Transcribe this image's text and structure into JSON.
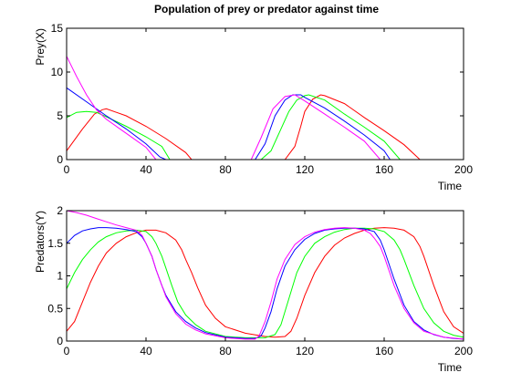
{
  "chart_data": [
    {
      "type": "line",
      "title": "Population of prey or predator against time",
      "xlabel": "Time",
      "ylabel": "Prey(X)",
      "xlim": [
        0,
        200
      ],
      "ylim": [
        0,
        15
      ],
      "xticks": [
        "0",
        "40",
        "80",
        "120",
        "160",
        "200"
      ],
      "yticks": [
        "0",
        "5",
        "10",
        "15"
      ],
      "grid": false,
      "series": [
        {
          "color": "#ff0000",
          "x": [
            0,
            8,
            14,
            18,
            20,
            30,
            40,
            50,
            60,
            63,
            70,
            80,
            90,
            100,
            110,
            115,
            118,
            120,
            124,
            128,
            130,
            140,
            150,
            160,
            170,
            178,
            185,
            200
          ],
          "y": [
            1.0,
            3.5,
            5.2,
            5.7,
            5.8,
            5.0,
            3.8,
            2.4,
            0.8,
            0,
            0,
            0,
            0,
            0,
            0,
            1.5,
            3.8,
            5.5,
            6.9,
            7.4,
            7.3,
            6.4,
            4.8,
            3.3,
            1.7,
            0,
            0,
            0
          ]
        },
        {
          "color": "#00ff00",
          "x": [
            0,
            5,
            10,
            15,
            20,
            30,
            40,
            48,
            52,
            60,
            80,
            98,
            103,
            108,
            112,
            116,
            120,
            122,
            130,
            140,
            150,
            160,
            168,
            200
          ],
          "y": [
            4.8,
            5.4,
            5.5,
            5.4,
            4.9,
            3.8,
            2.6,
            1.5,
            0,
            0,
            0,
            0,
            1.0,
            3.5,
            5.5,
            6.8,
            7.3,
            7.4,
            6.8,
            5.2,
            3.7,
            2.1,
            0,
            0
          ]
        },
        {
          "color": "#0000ff",
          "x": [
            0,
            10,
            20,
            30,
            40,
            47,
            50,
            80,
            95,
            100,
            105,
            110,
            114,
            118,
            120,
            130,
            140,
            150,
            160,
            163,
            200
          ],
          "y": [
            8.2,
            6.6,
            5.0,
            3.5,
            1.8,
            0.3,
            0,
            0,
            0,
            1.8,
            5.0,
            6.8,
            7.4,
            7.4,
            7.1,
            5.9,
            4.4,
            2.8,
            1.0,
            0,
            0
          ]
        },
        {
          "color": "#ff00ff",
          "x": [
            0,
            5,
            10,
            15,
            20,
            30,
            40,
            45,
            80,
            93,
            98,
            104,
            110,
            115,
            120,
            130,
            140,
            150,
            158,
            200
          ],
          "y": [
            11.8,
            9.5,
            7.4,
            5.7,
            4.6,
            3.0,
            1.4,
            0,
            0,
            0,
            2.5,
            5.8,
            7.2,
            7.4,
            6.7,
            5.2,
            3.7,
            2.1,
            0,
            0
          ]
        }
      ]
    },
    {
      "type": "line",
      "title": "",
      "xlabel": "Time",
      "ylabel": "Predators(Y)",
      "xlim": [
        0,
        200
      ],
      "ylim": [
        0,
        2
      ],
      "xticks": [
        "0",
        "40",
        "80",
        "120",
        "160",
        "200"
      ],
      "yticks": [
        "0",
        "0.5",
        "1",
        "1.5",
        "2"
      ],
      "grid": false,
      "series": [
        {
          "color": "#ff0000",
          "x": [
            0,
            4,
            8,
            12,
            16,
            20,
            25,
            30,
            35,
            40,
            45,
            50,
            55,
            58,
            60,
            63,
            66,
            70,
            75,
            80,
            90,
            100,
            105,
            110,
            113,
            116,
            120,
            125,
            130,
            135,
            140,
            145,
            150,
            155,
            160,
            165,
            170,
            175,
            178,
            180,
            185,
            190,
            195,
            200
          ],
          "y": [
            0.15,
            0.3,
            0.6,
            0.9,
            1.15,
            1.35,
            1.5,
            1.6,
            1.66,
            1.7,
            1.7,
            1.66,
            1.55,
            1.4,
            1.25,
            1.05,
            0.82,
            0.55,
            0.35,
            0.22,
            0.12,
            0.07,
            0.06,
            0.07,
            0.15,
            0.35,
            0.7,
            1.05,
            1.3,
            1.47,
            1.58,
            1.65,
            1.7,
            1.73,
            1.74,
            1.73,
            1.7,
            1.6,
            1.45,
            1.3,
            0.85,
            0.45,
            0.22,
            0.12
          ]
        },
        {
          "color": "#00ff00",
          "x": [
            0,
            4,
            8,
            12,
            16,
            20,
            25,
            30,
            35,
            40,
            43,
            45,
            48,
            50,
            53,
            56,
            60,
            65,
            70,
            80,
            90,
            100,
            105,
            108,
            112,
            116,
            120,
            125,
            130,
            135,
            140,
            145,
            150,
            155,
            160,
            165,
            168,
            170,
            175,
            180,
            185,
            190,
            195,
            200
          ],
          "y": [
            0.8,
            1.05,
            1.25,
            1.4,
            1.52,
            1.6,
            1.66,
            1.69,
            1.7,
            1.68,
            1.6,
            1.5,
            1.3,
            1.12,
            0.85,
            0.6,
            0.4,
            0.25,
            0.15,
            0.07,
            0.05,
            0.05,
            0.1,
            0.25,
            0.65,
            1.05,
            1.3,
            1.5,
            1.6,
            1.67,
            1.71,
            1.73,
            1.73,
            1.72,
            1.68,
            1.55,
            1.4,
            1.25,
            0.85,
            0.5,
            0.28,
            0.15,
            0.09,
            0.06
          ]
        },
        {
          "color": "#0000ff",
          "x": [
            0,
            4,
            8,
            12,
            16,
            20,
            25,
            30,
            35,
            38,
            40,
            43,
            45,
            48,
            50,
            55,
            60,
            65,
            70,
            80,
            90,
            95,
            98,
            100,
            103,
            106,
            110,
            115,
            120,
            125,
            130,
            135,
            140,
            145,
            150,
            155,
            158,
            160,
            165,
            170,
            175,
            180,
            185,
            190,
            195,
            200
          ],
          "y": [
            1.5,
            1.62,
            1.69,
            1.72,
            1.74,
            1.74,
            1.73,
            1.71,
            1.68,
            1.6,
            1.5,
            1.3,
            1.1,
            0.85,
            0.7,
            0.45,
            0.3,
            0.2,
            0.13,
            0.06,
            0.04,
            0.04,
            0.08,
            0.2,
            0.45,
            0.8,
            1.15,
            1.4,
            1.56,
            1.65,
            1.7,
            1.72,
            1.73,
            1.73,
            1.72,
            1.68,
            1.55,
            1.4,
            0.95,
            0.55,
            0.3,
            0.17,
            0.1,
            0.06,
            0.04,
            0.03
          ]
        },
        {
          "color": "#ff00ff",
          "x": [
            0,
            5,
            10,
            15,
            20,
            25,
            30,
            35,
            38,
            40,
            43,
            45,
            48,
            50,
            55,
            60,
            65,
            70,
            80,
            90,
            95,
            97,
            100,
            103,
            106,
            110,
            115,
            120,
            125,
            130,
            135,
            140,
            145,
            150,
            153,
            155,
            158,
            160,
            165,
            170,
            175,
            180,
            190,
            200
          ],
          "y": [
            2.0,
            1.97,
            1.93,
            1.88,
            1.83,
            1.78,
            1.74,
            1.7,
            1.62,
            1.5,
            1.3,
            1.1,
            0.85,
            0.68,
            0.42,
            0.26,
            0.17,
            0.11,
            0.05,
            0.03,
            0.03,
            0.08,
            0.3,
            0.6,
            0.95,
            1.25,
            1.48,
            1.6,
            1.67,
            1.71,
            1.73,
            1.74,
            1.73,
            1.7,
            1.65,
            1.58,
            1.45,
            1.3,
            0.85,
            0.5,
            0.28,
            0.15,
            0.06,
            0.03
          ]
        }
      ]
    }
  ]
}
